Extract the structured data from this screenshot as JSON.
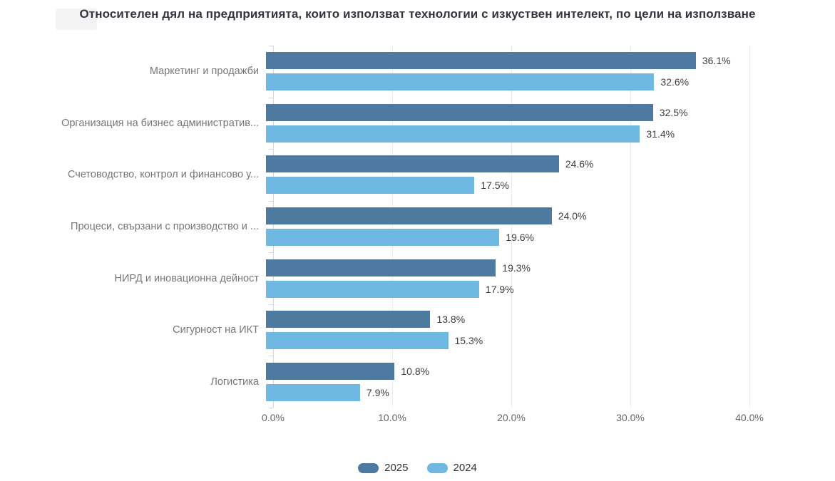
{
  "title": "Относителен дял на предприятията, които използват технологии с изкуствен интелект, по цели на използване",
  "chart_data": {
    "type": "bar",
    "orientation": "horizontal",
    "title": "Относителен дял на предприятията, които използват технологии с изкуствен интелект, по цели на използване",
    "categories": [
      "Маркетинг и продажби",
      "Организация на бизнес административ...",
      "Счетоводство, контрол и финансово у...",
      "Процеси, свързани с производство и ...",
      "НИРД и иновационна дейност",
      "Сигурност на ИКТ",
      "Логистика"
    ],
    "series": [
      {
        "name": "2025",
        "color": "#4E7AA1",
        "values": [
          36.1,
          32.5,
          24.6,
          24.0,
          19.3,
          13.8,
          10.8
        ],
        "labels": [
          "36.1%",
          "32.5%",
          "24.6%",
          "24.0%",
          "19.3%",
          "13.8%",
          "10.8%"
        ]
      },
      {
        "name": "2024",
        "color": "#6FB8E2",
        "values": [
          32.6,
          31.4,
          17.5,
          19.6,
          17.9,
          15.3,
          7.9
        ],
        "labels": [
          "32.6%",
          "31.4%",
          "17.5%",
          "19.6%",
          "17.9%",
          "15.3%",
          "7.9%"
        ]
      }
    ],
    "xlabel": "",
    "ylabel": "",
    "xlim": [
      0,
      40
    ],
    "x_tick_values": [
      0,
      10,
      20,
      30,
      40
    ],
    "x_tick_labels": [
      "0.0%",
      "10.0%",
      "20.0%",
      "30.0%",
      "40.0%"
    ],
    "legend_position": "bottom",
    "grid": "vertical-light"
  },
  "style": {
    "bar_2025": "#4E7AA1",
    "bar_2024": "#6FB8E2",
    "axis_line": "#D6D6D6",
    "gridline": "#EBEBEB",
    "title_color": "#32353B"
  }
}
